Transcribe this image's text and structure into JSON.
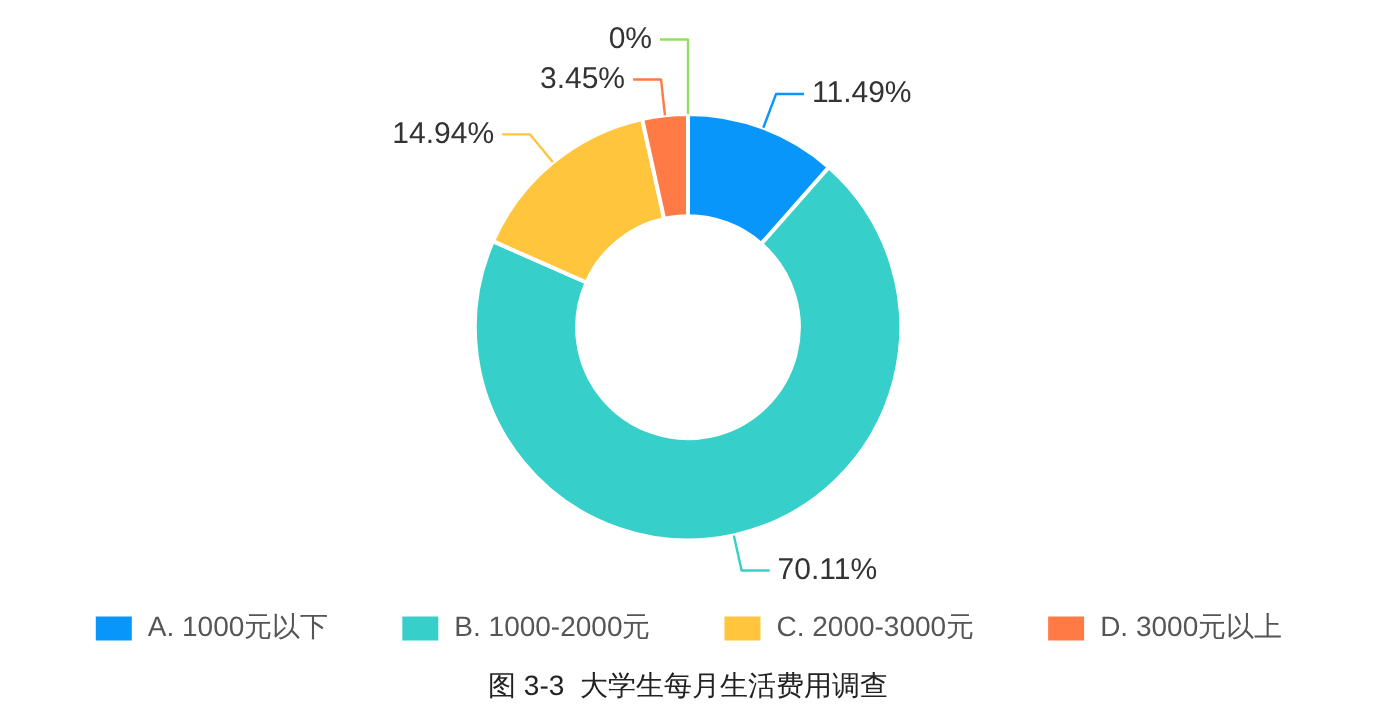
{
  "chart_data": {
    "type": "donut",
    "title": "图 3-3  大学生每月生活费用调查",
    "categories": [
      "A. 1000元以下",
      "B. 1000-2000元",
      "C. 2000-3000元",
      "D. 3000元以上",
      null
    ],
    "values": [
      11.49,
      70.11,
      14.94,
      3.45,
      0
    ],
    "value_labels": [
      "11.49%",
      "70.11%",
      "14.94%",
      "3.45%",
      "0%"
    ],
    "colors": [
      "#0996fa",
      "#36cfc9",
      "#ffc53d",
      "#ff7a45",
      "#95de64"
    ],
    "legend": "bottom"
  }
}
